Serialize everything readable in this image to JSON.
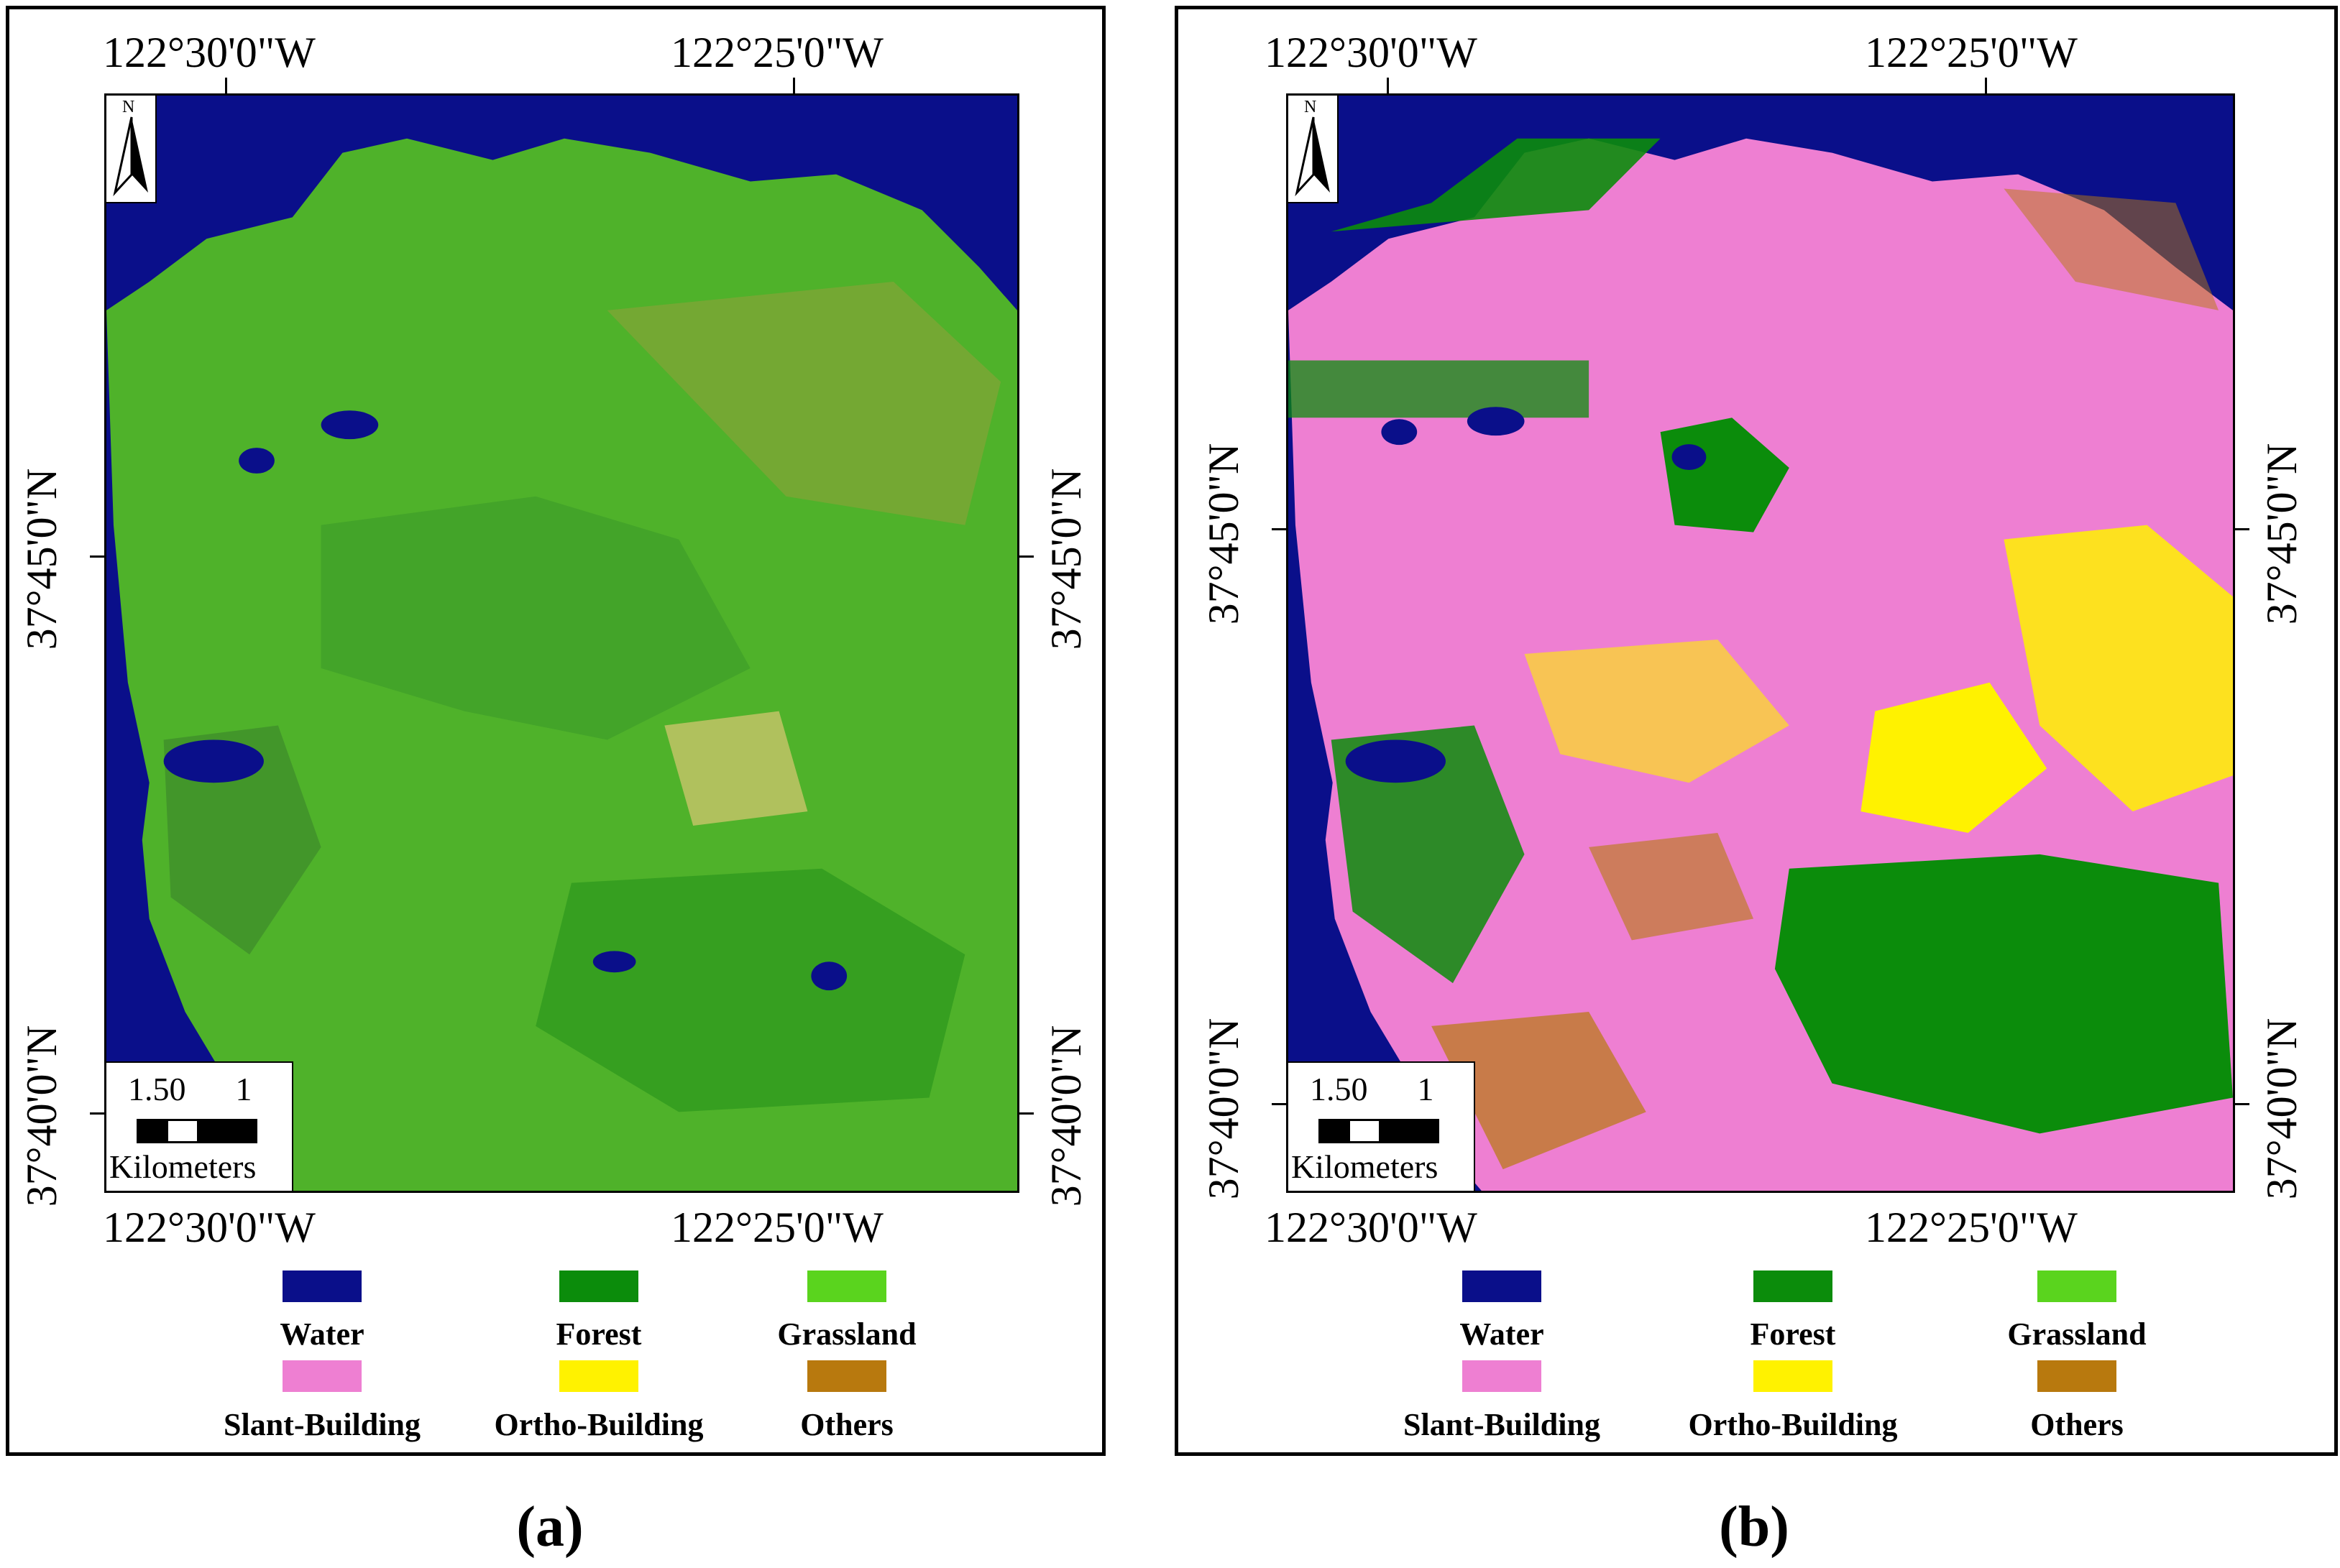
{
  "panels": [
    {
      "id": "a",
      "caption": "(a)",
      "top_left_lon": "122°30'0\"W",
      "top_right_lon": "122°25'0\"W",
      "bottom_left_lon": "122°30'0\"W",
      "bottom_right_lon": "122°25'0\"W",
      "left_upper_lat": "37°45'0\"N",
      "left_lower_lat": "37°40'0\"N",
      "right_upper_lat": "37°45'0\"N",
      "right_lower_lat": "37°40'0\"N",
      "north": "N",
      "scale_numbers": "1.50      1",
      "scale_unit": "Kilometers",
      "dominant_class": "Grassland"
    },
    {
      "id": "b",
      "caption": "(b)",
      "top_left_lon": "122°30'0\"W",
      "top_right_lon": "122°25'0\"W",
      "bottom_left_lon": "122°30'0\"W",
      "bottom_right_lon": "122°25'0\"W",
      "left_upper_lat": "37°45'0\"N",
      "left_lower_lat": "37°40'0\"N",
      "right_upper_lat": "37°45'0\"N",
      "right_lower_lat": "37°40'0\"N",
      "north": "N",
      "scale_numbers": "1.50      1",
      "scale_unit": "Kilometers",
      "dominant_class": "Slant-Building"
    }
  ],
  "legend": [
    {
      "label": "Water",
      "color": "#0a0f8a"
    },
    {
      "label": "Forest",
      "color": "#0b8c0b"
    },
    {
      "label": "Grassland",
      "color": "#5ad41e"
    },
    {
      "label": "Slant-Building",
      "color": "#ee7fd2"
    },
    {
      "label": "Ortho-Building",
      "color": "#fff200"
    },
    {
      "label": "Others",
      "color": "#b8790e"
    }
  ],
  "map_colors": {
    "water": "#0a0f8a",
    "forest": "#0b8c0b",
    "grass": "#5ad41e",
    "slant": "#ee7fd2",
    "ortho": "#fff200",
    "others": "#b8790e",
    "grass_dark": "#3f9e2a",
    "olive": "#8ea23a"
  }
}
